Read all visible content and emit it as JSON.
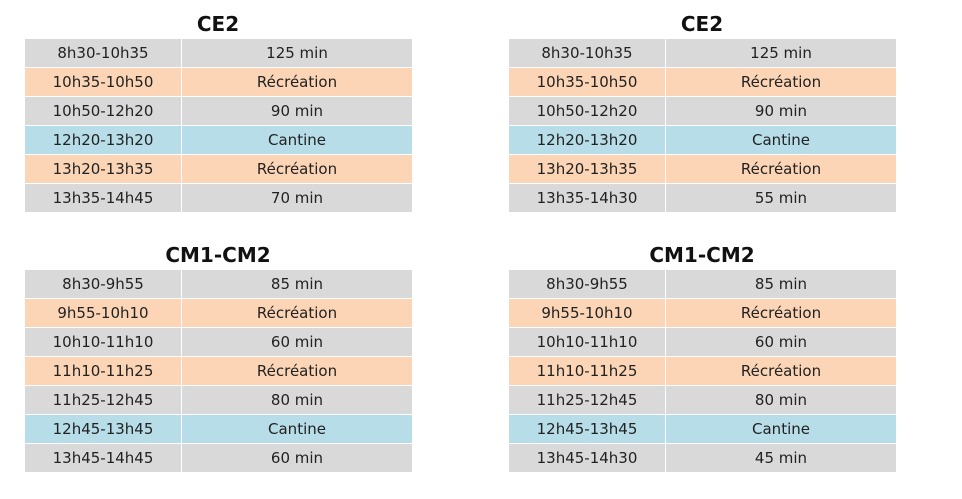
{
  "blocks": [
    {
      "title": "CE2",
      "rows": [
        {
          "time": "8h30-10h35",
          "value": "125 min",
          "kind": "class"
        },
        {
          "time": "10h35-10h50",
          "value": "Récréation",
          "kind": "recess"
        },
        {
          "time": "10h50-12h20",
          "value": "90 min",
          "kind": "class"
        },
        {
          "time": "12h20-13h20",
          "value": "Cantine",
          "kind": "lunch"
        },
        {
          "time": "13h20-13h35",
          "value": "Récréation",
          "kind": "recess"
        },
        {
          "time": "13h35-14h45",
          "value": "70 min",
          "kind": "class"
        }
      ]
    },
    {
      "title": "CE2",
      "rows": [
        {
          "time": "8h30-10h35",
          "value": "125 min",
          "kind": "class"
        },
        {
          "time": "10h35-10h50",
          "value": "Récréation",
          "kind": "recess"
        },
        {
          "time": "10h50-12h20",
          "value": "90 min",
          "kind": "class"
        },
        {
          "time": "12h20-13h20",
          "value": "Cantine",
          "kind": "lunch"
        },
        {
          "time": "13h20-13h35",
          "value": "Récréation",
          "kind": "recess"
        },
        {
          "time": "13h35-14h30",
          "value": "55 min",
          "kind": "class"
        }
      ]
    },
    {
      "title": "CM1-CM2",
      "rows": [
        {
          "time": "8h30-9h55",
          "value": "85 min",
          "kind": "class"
        },
        {
          "time": "9h55-10h10",
          "value": "Récréation",
          "kind": "recess"
        },
        {
          "time": "10h10-11h10",
          "value": "60 min",
          "kind": "class"
        },
        {
          "time": "11h10-11h25",
          "value": "Récréation",
          "kind": "recess"
        },
        {
          "time": "11h25-12h45",
          "value": "80 min",
          "kind": "class"
        },
        {
          "time": "12h45-13h45",
          "value": "Cantine",
          "kind": "lunch"
        },
        {
          "time": "13h45-14h45",
          "value": "60 min",
          "kind": "class"
        }
      ]
    },
    {
      "title": "CM1-CM2",
      "rows": [
        {
          "time": "8h30-9h55",
          "value": "85 min",
          "kind": "class"
        },
        {
          "time": "9h55-10h10",
          "value": "Récréation",
          "kind": "recess"
        },
        {
          "time": "10h10-11h10",
          "value": "60 min",
          "kind": "class"
        },
        {
          "time": "11h10-11h25",
          "value": "Récréation",
          "kind": "recess"
        },
        {
          "time": "11h25-12h45",
          "value": "80 min",
          "kind": "class"
        },
        {
          "time": "12h45-13h45",
          "value": "Cantine",
          "kind": "lunch"
        },
        {
          "time": "13h45-14h30",
          "value": "45 min",
          "kind": "class"
        }
      ]
    }
  ],
  "colors": {
    "class": "#d9d9d9",
    "recess": "#fbd5b5",
    "lunch": "#b7dde8"
  }
}
